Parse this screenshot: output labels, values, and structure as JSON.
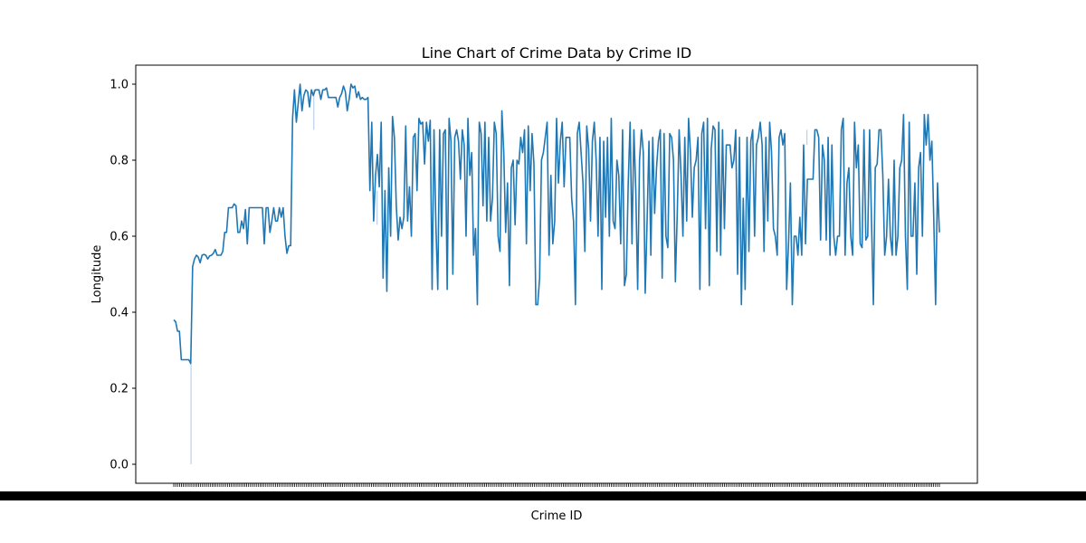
{
  "chart_data": {
    "type": "line",
    "title": "Line Chart of Crime Data by Crime ID",
    "xlabel": "Crime ID",
    "ylabel": "Longitude",
    "ylim": [
      -0.05,
      1.05
    ],
    "y_ticks": [
      "0.0",
      "0.2",
      "0.4",
      "0.6",
      "0.8",
      "1.0"
    ],
    "grid": false,
    "line_color": "#1f77b4",
    "band_color": "#aec7e8",
    "n_points": 400,
    "series": [
      {
        "values": [
          0.38,
          0.375,
          0.35,
          0.35,
          0.275,
          0.275,
          0.275,
          0.275,
          0.275,
          0.265,
          0.52,
          0.54,
          0.55,
          0.545,
          0.53,
          0.55,
          0.552,
          0.55,
          0.54,
          0.548,
          0.55,
          0.555,
          0.565,
          0.55,
          0.55,
          0.55,
          0.56,
          0.61,
          0.61,
          0.675,
          0.675,
          0.675,
          0.685,
          0.68,
          0.61,
          0.61,
          0.64,
          0.62,
          0.67,
          0.58,
          0.675,
          0.675,
          0.675,
          0.675,
          0.675,
          0.675,
          0.675,
          0.675,
          0.58,
          0.675,
          0.675,
          0.61,
          0.64,
          0.675,
          0.64,
          0.64,
          0.675,
          0.65,
          0.675,
          0.6,
          0.555,
          0.575,
          0.575,
          0.91,
          0.985,
          0.9,
          0.95,
          1.0,
          0.93,
          0.97,
          0.985,
          0.98,
          0.94,
          0.985,
          0.97,
          0.985,
          0.985,
          0.985,
          0.96,
          0.985,
          0.985,
          0.99,
          0.965,
          0.965,
          0.965,
          0.965,
          0.965,
          0.94,
          0.965,
          0.975,
          0.995,
          0.98,
          0.93,
          0.96,
          1.0,
          0.99,
          0.995,
          0.965,
          0.98,
          0.96,
          0.965,
          0.96,
          0.96,
          0.965,
          0.72,
          0.9,
          0.64,
          0.76,
          0.815,
          0.73,
          0.9,
          0.49,
          0.72,
          0.455,
          0.78,
          0.6,
          0.915,
          0.86,
          0.68,
          0.59,
          0.65,
          0.62,
          0.65,
          0.89,
          0.64,
          0.73,
          0.6,
          0.86,
          0.87,
          0.72,
          0.91,
          0.895,
          0.9,
          0.79,
          0.9,
          0.85,
          0.905,
          0.46,
          0.88,
          0.63,
          0.46,
          0.88,
          0.6,
          0.87,
          0.88,
          0.46,
          0.91,
          0.85,
          0.5,
          0.86,
          0.88,
          0.85,
          0.75,
          0.88,
          0.84,
          0.6,
          0.91,
          0.76,
          0.82,
          0.55,
          0.62,
          0.42,
          0.9,
          0.87,
          0.68,
          0.9,
          0.64,
          0.86,
          0.64,
          0.7,
          0.9,
          0.87,
          0.6,
          0.56,
          0.93,
          0.82,
          0.61,
          0.74,
          0.47,
          0.78,
          0.8,
          0.63,
          0.8,
          0.79,
          0.86,
          0.82,
          0.88,
          0.58,
          0.89,
          0.72,
          0.87,
          0.79,
          0.42,
          0.42,
          0.49,
          0.8,
          0.82,
          0.86,
          0.9,
          0.55,
          0.76,
          0.58,
          0.64,
          0.91,
          0.74,
          0.85,
          0.9,
          0.73,
          0.86,
          0.86,
          0.86,
          0.7,
          0.64,
          0.42,
          0.87,
          0.9,
          0.82,
          0.74,
          0.56,
          0.89,
          0.83,
          0.64,
          0.85,
          0.9,
          0.8,
          0.6,
          0.86,
          0.46,
          0.85,
          0.65,
          0.86,
          0.6,
          0.91,
          0.64,
          0.62,
          0.8,
          0.76,
          0.58,
          0.88,
          0.47,
          0.5,
          0.74,
          0.9,
          0.58,
          0.88,
          0.72,
          0.46,
          0.8,
          0.88,
          0.82,
          0.45,
          0.64,
          0.85,
          0.55,
          0.86,
          0.66,
          0.78,
          0.85,
          0.88,
          0.49,
          0.87,
          0.6,
          0.57,
          0.87,
          0.86,
          0.8,
          0.48,
          0.66,
          0.88,
          0.76,
          0.6,
          0.86,
          0.64,
          0.91,
          0.82,
          0.65,
          0.78,
          0.8,
          0.86,
          0.46,
          0.87,
          0.9,
          0.62,
          0.91,
          0.47,
          0.83,
          0.89,
          0.88,
          0.56,
          0.9,
          0.55,
          0.88,
          0.62,
          0.84,
          0.84,
          0.84,
          0.78,
          0.8,
          0.88,
          0.5,
          0.86,
          0.42,
          0.7,
          0.46,
          0.86,
          0.56,
          0.85,
          0.88,
          0.6,
          0.84,
          0.86,
          0.9,
          0.84,
          0.56,
          0.86,
          0.64,
          0.9,
          0.82,
          0.62,
          0.6,
          0.55,
          0.86,
          0.88,
          0.84,
          0.87,
          0.46,
          0.58,
          0.74,
          0.42,
          0.6,
          0.6,
          0.55,
          0.65,
          0.55,
          0.84,
          0.58,
          0.75,
          0.75,
          0.75,
          0.75,
          0.88,
          0.88,
          0.86,
          0.59,
          0.84,
          0.8,
          0.59,
          0.86,
          0.55,
          0.84,
          0.6,
          0.55,
          0.6,
          0.6,
          0.88,
          0.91,
          0.55,
          0.74,
          0.78,
          0.6,
          0.55,
          0.9,
          0.78,
          0.84,
          0.58,
          0.57,
          0.88,
          0.59,
          0.6,
          0.88,
          0.64,
          0.42,
          0.78,
          0.79,
          0.88,
          0.88,
          0.76,
          0.55,
          0.6,
          0.75,
          0.6,
          0.55,
          0.8,
          0.55,
          0.6,
          0.78,
          0.8,
          0.92,
          0.6,
          0.46,
          0.9,
          0.6,
          0.6,
          0.74,
          0.5,
          0.78,
          0.82,
          0.6,
          0.92,
          0.84,
          0.92,
          0.8,
          0.85,
          0.65,
          0.42,
          0.74,
          0.61
        ]
      }
    ],
    "bands": [
      {
        "index": 9,
        "low": 0.0,
        "high": 0.265
      },
      {
        "index": 73,
        "low": 0.88,
        "high": 0.985
      },
      {
        "index": 106,
        "low": 0.63,
        "high": 0.72
      },
      {
        "index": 330,
        "low": 0.84,
        "high": 0.88
      }
    ]
  }
}
